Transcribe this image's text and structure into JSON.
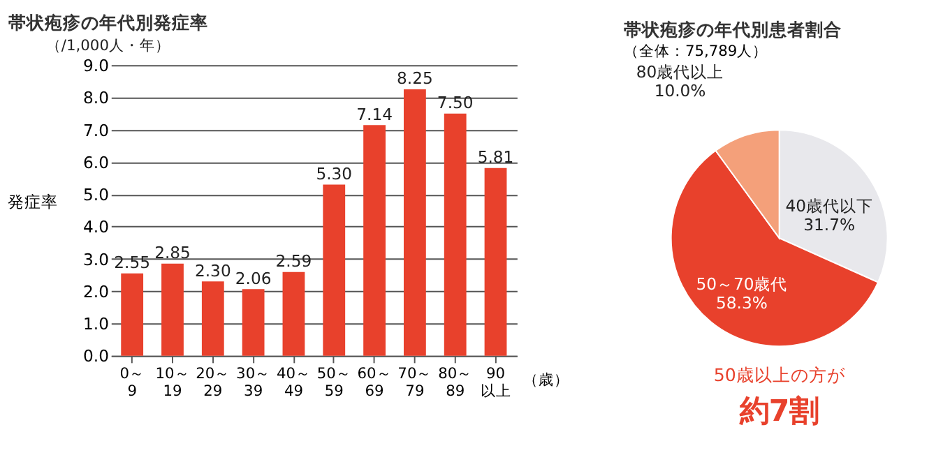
{
  "chart_data": [
    {
      "type": "bar",
      "title": "帯状疱疹の年代別発症率",
      "ylabel": "発症率",
      "xlabel": "（歳）",
      "annotations": [
        "（/1,000人・年）"
      ],
      "categories": [
        "0～\n9",
        "10～\n19",
        "20～\n29",
        "30～\n39",
        "40～\n49",
        "50～\n59",
        "60～\n69",
        "70～\n79",
        "80～\n89",
        "90\n以上"
      ],
      "values": [
        2.55,
        2.85,
        2.3,
        2.06,
        2.59,
        5.3,
        7.14,
        8.25,
        7.5,
        5.81
      ],
      "color": "#e8412c",
      "value_labels": [
        "2.55",
        "2.85",
        "2.30",
        "2.06",
        "2.59",
        "5.30",
        "7.14",
        "8.25",
        "7.50",
        "5.81"
      ],
      "grid": "y",
      "legend": false,
      "ylim": [
        0,
        9
      ],
      "yticks": [
        {
          "value": 0,
          "label": "0.0"
        },
        {
          "value": 1,
          "label": "1.0"
        },
        {
          "value": 2,
          "label": "2.0"
        },
        {
          "value": 3,
          "label": "3.0"
        },
        {
          "value": 4,
          "label": "4.0"
        },
        {
          "value": 5,
          "label": "5.0"
        },
        {
          "value": 6,
          "label": "6.0"
        },
        {
          "value": 7,
          "label": "7.0"
        },
        {
          "value": 8,
          "label": "8.0"
        },
        {
          "value": 9,
          "label": "9.0"
        }
      ]
    },
    {
      "type": "pie",
      "title": "帯状疱疹の年代別患者割合",
      "subtitle": "（全体：75,789人）",
      "categories": [
        "40歳代以下",
        "50～70歳代",
        "80歳代以上"
      ],
      "values": [
        31.7,
        58.3,
        10.0
      ],
      "colors": [
        "#e8e8ec",
        "#e8412c",
        "#f4a07a"
      ],
      "value_labels": [
        "31.7%",
        "58.3%",
        "10.0%"
      ],
      "legend": false,
      "annotations": [
        "50歳以上の方が",
        "約7割"
      ]
    }
  ]
}
